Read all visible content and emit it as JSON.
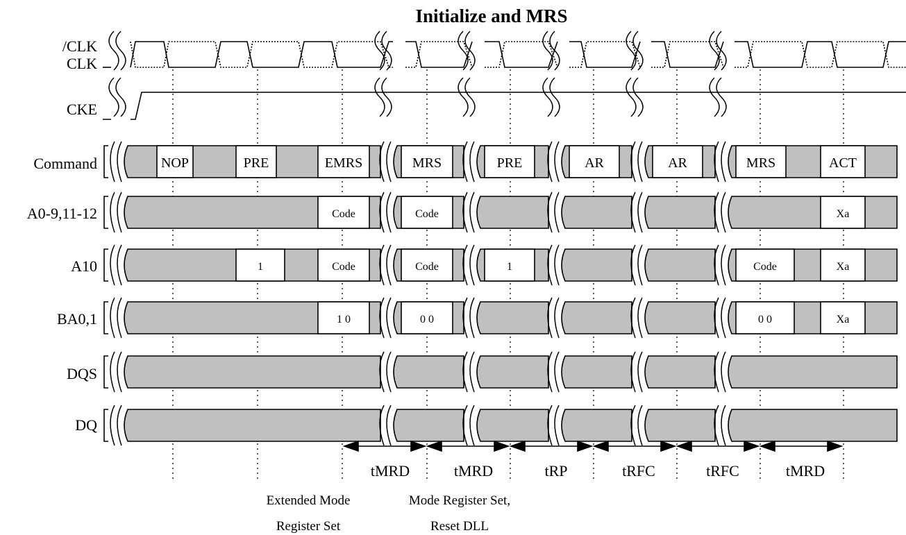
{
  "title": "Initialize and MRS",
  "signals": {
    "clk_n": "/CLK",
    "clk": "CLK",
    "cke": "CKE",
    "command": "Command",
    "addr": "A0-9,11-12",
    "a10": "A10",
    "ba": "BA0,1",
    "dqs": "DQS",
    "dq": "DQ"
  },
  "commands": [
    "NOP",
    "PRE",
    "EMRS",
    "MRS",
    "PRE",
    "AR",
    "AR",
    "MRS",
    "ACT"
  ],
  "addr_values": [
    "Code",
    "Code",
    "Xa"
  ],
  "a10_values": [
    "1",
    "Code",
    "Code",
    "1",
    "Code",
    "Xa"
  ],
  "ba_values": [
    "1 0",
    "0 0",
    "0 0",
    "Xa"
  ],
  "timings": [
    "tMRD",
    "tMRD",
    "tRP",
    "tRFC",
    "tRFC",
    "tMRD"
  ],
  "notes": {
    "emrs_line1": "Extended Mode",
    "emrs_line2": "Register Set",
    "mrs_line1": "Mode Register Set,",
    "mrs_line2": "Reset DLL"
  },
  "colors": {
    "bus_fill": "#c0c0c0",
    "box_fill": "#ffffff",
    "line": "#000000"
  }
}
